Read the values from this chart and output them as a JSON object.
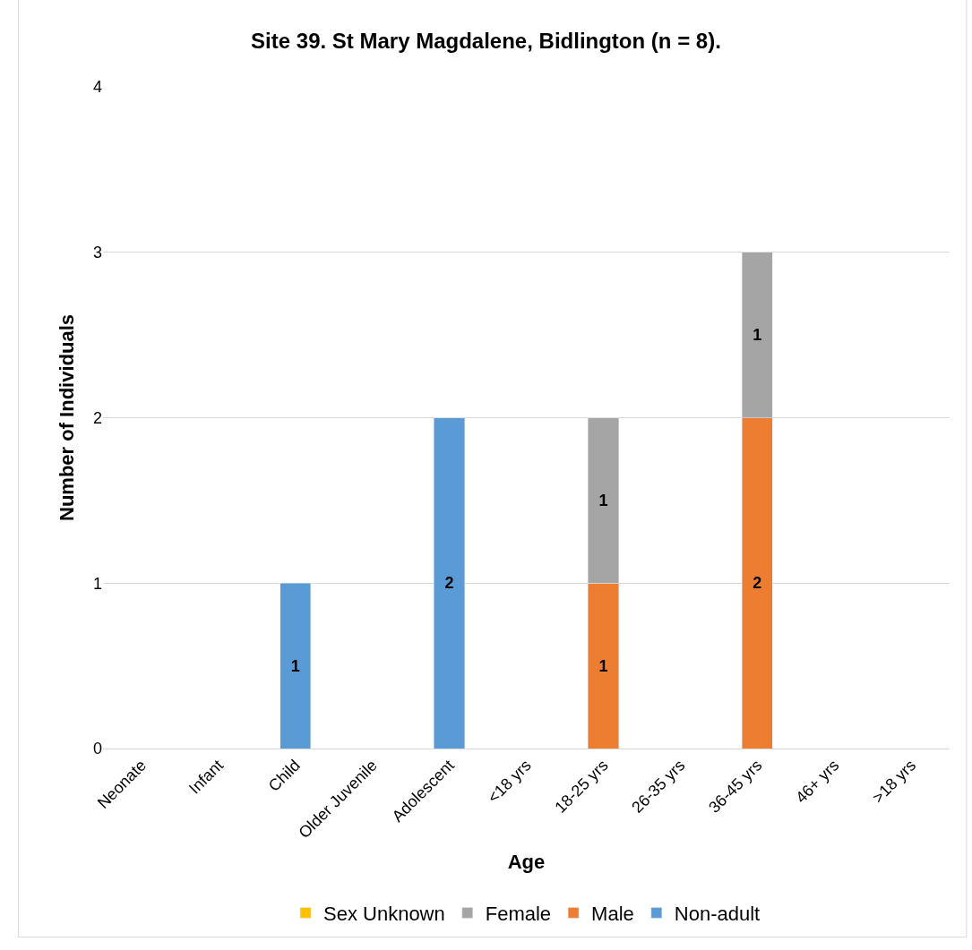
{
  "chart_data": {
    "type": "bar",
    "title": "Site 39. St Mary Magdalene, Bidlington (n = 8).",
    "xlabel": "Age",
    "ylabel": "Number of Individuals",
    "categories": [
      "Neonate",
      "Infant",
      "Child",
      "Older Juvenile",
      "Adolescent",
      "<18 yrs",
      "18-25 yrs",
      "26-35 yrs",
      "36-45 yrs",
      "46+ yrs",
      ">18 yrs"
    ],
    "series": [
      {
        "name": "Non-adult",
        "color": "#5b9bd5",
        "values": [
          null,
          null,
          1,
          null,
          2,
          null,
          null,
          null,
          null,
          null,
          null
        ]
      },
      {
        "name": "Male",
        "color": "#ed7d31",
        "values": [
          null,
          null,
          null,
          null,
          null,
          null,
          1,
          null,
          2,
          null,
          null
        ]
      },
      {
        "name": "Female",
        "color": "#a5a5a5",
        "values": [
          null,
          null,
          null,
          null,
          null,
          null,
          1,
          null,
          1,
          null,
          null
        ]
      },
      {
        "name": "Sex Unknown",
        "color": "#ffc000",
        "values": [
          null,
          null,
          null,
          null,
          null,
          null,
          null,
          null,
          null,
          null,
          null
        ]
      }
    ],
    "stacked": true,
    "ylim": [
      0,
      4
    ],
    "yticks": [
      0,
      1,
      2,
      3,
      4
    ],
    "grid": "y",
    "legend": "bottom",
    "data_labels": true
  }
}
